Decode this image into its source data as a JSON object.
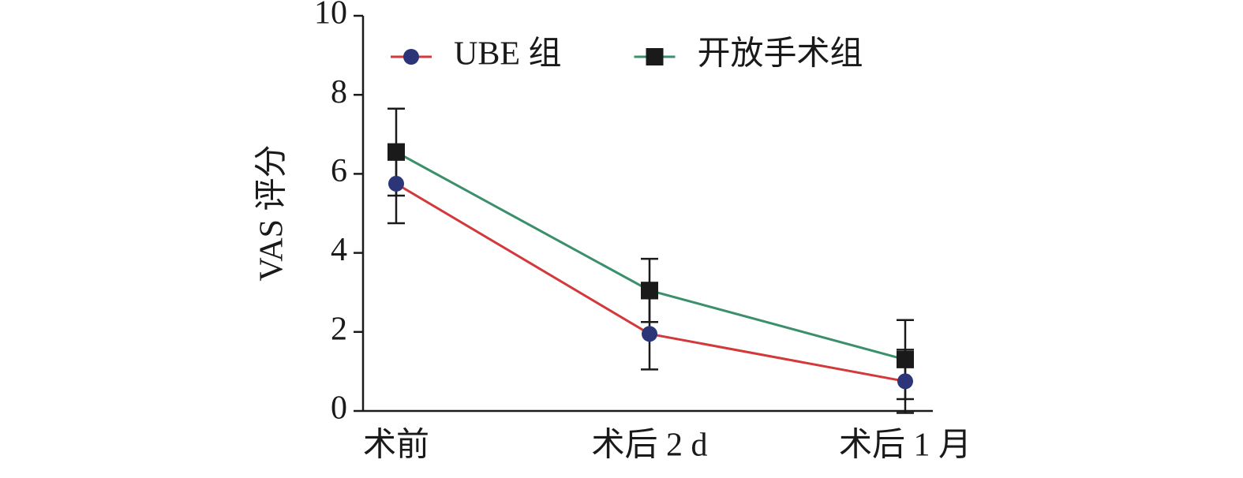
{
  "chart_data": {
    "type": "line",
    "y_label": "VAS 评分",
    "categories": [
      "术前",
      "术后 2 d",
      "术后 1 月"
    ],
    "series": [
      {
        "name": "UBE 组",
        "color": "#d3383a",
        "marker_color": "#2b3577",
        "marker": "circle",
        "values": [
          5.75,
          1.95,
          0.75
        ],
        "errors": [
          1.0,
          0.9,
          0.8
        ]
      },
      {
        "name": "开放手术组",
        "color": "#3b8f6b",
        "marker_color": "#1a1a1a",
        "marker": "square",
        "values": [
          6.55,
          3.05,
          1.3
        ],
        "errors": [
          1.1,
          0.8,
          1.0
        ]
      }
    ],
    "ylim": [
      0,
      10
    ],
    "yticks": [
      0,
      2,
      4,
      6,
      8,
      10
    ],
    "grid": false,
    "legend": "top-left"
  }
}
